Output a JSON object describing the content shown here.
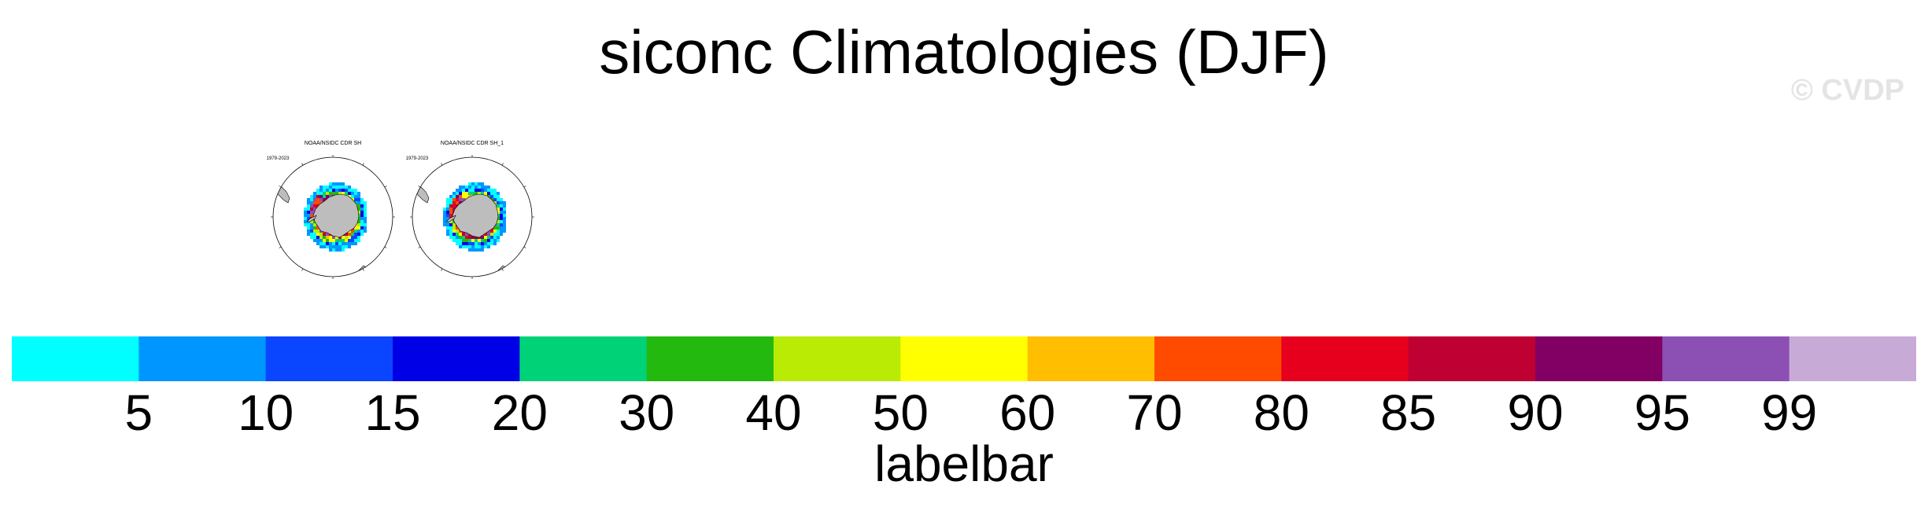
{
  "title": "siconc Climatologies (DJF)",
  "watermark": "© CVDP",
  "panels": [
    {
      "title": "NOAA/NSIDC CDR SH",
      "years": "1979-2023"
    },
    {
      "title": "NOAA/NSIDC CDR SH_1",
      "years": "1979-2023"
    }
  ],
  "labelbar": {
    "title": "labelbar",
    "levels": [
      "5",
      "10",
      "15",
      "20",
      "30",
      "40",
      "50",
      "60",
      "70",
      "80",
      "85",
      "90",
      "95",
      "99"
    ],
    "colors": [
      "#00ffff",
      "#0096ff",
      "#0a46ff",
      "#0000e6",
      "#00d278",
      "#23b90f",
      "#b9eb05",
      "#ffff00",
      "#ffbe00",
      "#ff4b00",
      "#e6001e",
      "#be0032",
      "#820064",
      "#8c50b4",
      "#c8aad7"
    ]
  },
  "map_colors": {
    "land": "#bdbdbd",
    "land_outline": "#000000"
  }
}
